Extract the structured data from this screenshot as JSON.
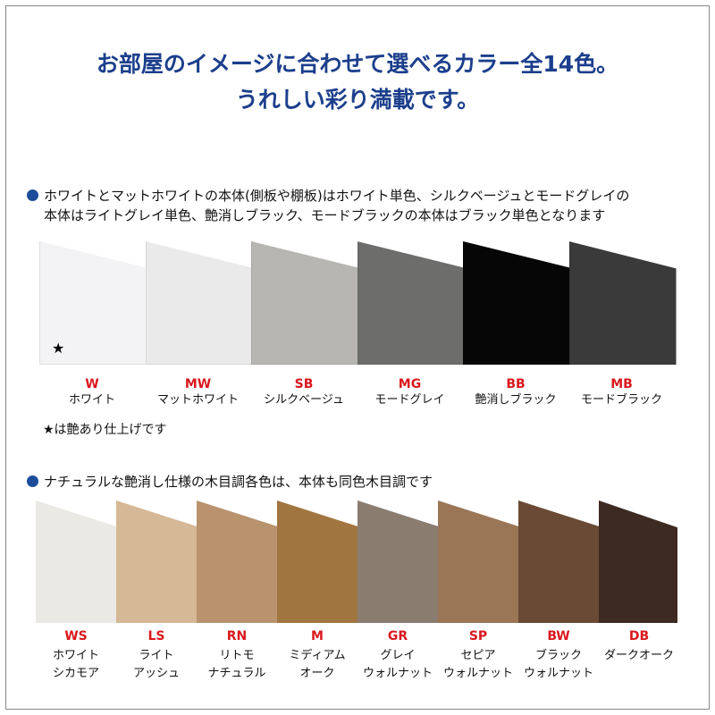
{
  "header": {
    "line1": "お部屋のイメージに合わせて選べるカラー全14色。",
    "line2": "うれしい彩り満載です。"
  },
  "section1": {
    "note_line1": "ホワイトとマットホワイトの本体(側板や棚板)はホワイト単色、シルクベージュとモードグレイの",
    "note_line2": "本体はライトグレイ単色、艶消しブラック、モードブラックの本体はブラック単色となります",
    "gloss_mark": "★",
    "gloss_note": "★は艶あり仕上げです",
    "colors": [
      {
        "code": "W",
        "name": "ホワイト",
        "swatch": "#f3f3f5"
      },
      {
        "code": "MW",
        "name": "マットホワイト",
        "swatch": "#eaeaea"
      },
      {
        "code": "SB",
        "name": "シルクベージュ",
        "swatch": "#b8b6b3"
      },
      {
        "code": "MG",
        "name": "モードグレイ",
        "swatch": "#6d6e6c"
      },
      {
        "code": "BB",
        "name": "艶消しブラック",
        "swatch": "#060606"
      },
      {
        "code": "MB",
        "name": "モードブラック",
        "swatch": "#3a3a3a"
      }
    ]
  },
  "section2": {
    "note": "ナチュラルな艶消し仕様の木目調各色は、本体も同色木目調です",
    "colors": [
      {
        "code": "WS",
        "name1": "ホワイト",
        "name2": "シカモア",
        "swatch": "#ebe9e3"
      },
      {
        "code": "LS",
        "name1": "ライト",
        "name2": "アッシュ",
        "swatch": "#d5b895"
      },
      {
        "code": "RN",
        "name1": "リトモ",
        "name2": "ナチュラル",
        "swatch": "#b8936e"
      },
      {
        "code": "M",
        "name1": "ミディアム",
        "name2": "オーク",
        "swatch": "#a1753f"
      },
      {
        "code": "GR",
        "name1": "グレイ",
        "name2": "ウォルナット",
        "swatch": "#8b7c70"
      },
      {
        "code": "SP",
        "name1": "セピア",
        "name2": "ウォルナット",
        "swatch": "#9a7556"
      },
      {
        "code": "BW",
        "name1": "ブラック",
        "name2": "ウォルナット",
        "swatch": "#6a4a35"
      },
      {
        "code": "DB",
        "name1": "ダークオーク",
        "name2": "",
        "swatch": "#3d2a22"
      }
    ]
  }
}
